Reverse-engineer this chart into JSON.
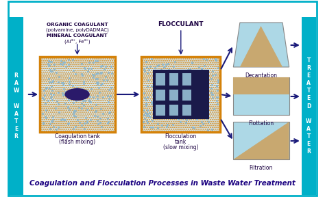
{
  "title": "Coagulation and Flocculation Processes in Waste Water Treatment",
  "title_color": "#1a0080",
  "title_fontsize": 9.5,
  "bg_color": "#ffffff",
  "border_color": "#00b0c8",
  "sidebar_color": "#00b0c8",
  "sidebar_text_color": "#ffffff",
  "raw_water_text": "R\nA\nW\n \nW\nA\nT\nE\nR",
  "treated_water_text": "T\nR\nE\nA\nT\nE\nD\n \nW\nA\nT\nE\nR",
  "coag_label1": "ORGANIC COAGULANT",
  "coag_label2": "(polyamine, polyDADMAC)",
  "coag_label3": "MINERAL COAGULANT",
  "coag_label4": "(Al³⁺, Fe³⁺)",
  "flocculant_label": "FLOCCULANT",
  "coag_tank_label1": "Coagulation tank",
  "coag_tank_label2": "(flash mixing)",
  "floc_tank_label1": "Flocculation",
  "floc_tank_label2": "tank",
  "floc_tank_label3": "(slow mixing)",
  "decantation_label": "Decantation",
  "flottation_label": "Flottation",
  "filtration_label": "Filtration",
  "tank_border_color": "#d4820a",
  "tank_fill_color": "#d4eaf5",
  "tank_dot_color": "#b0c8d8",
  "floc_dark_color": "#1a1a4a",
  "coag_blob_color": "#2a1a6a",
  "arrow_color": "#1a1a7a",
  "decant_top_color": "#c8a870",
  "decant_bottom_color": "#add8e6",
  "flot_top_color": "#c8a870",
  "flot_bottom_color": "#add8e6",
  "filt_triangle_color": "#c8a870",
  "filt_bg_color": "#add8e6"
}
